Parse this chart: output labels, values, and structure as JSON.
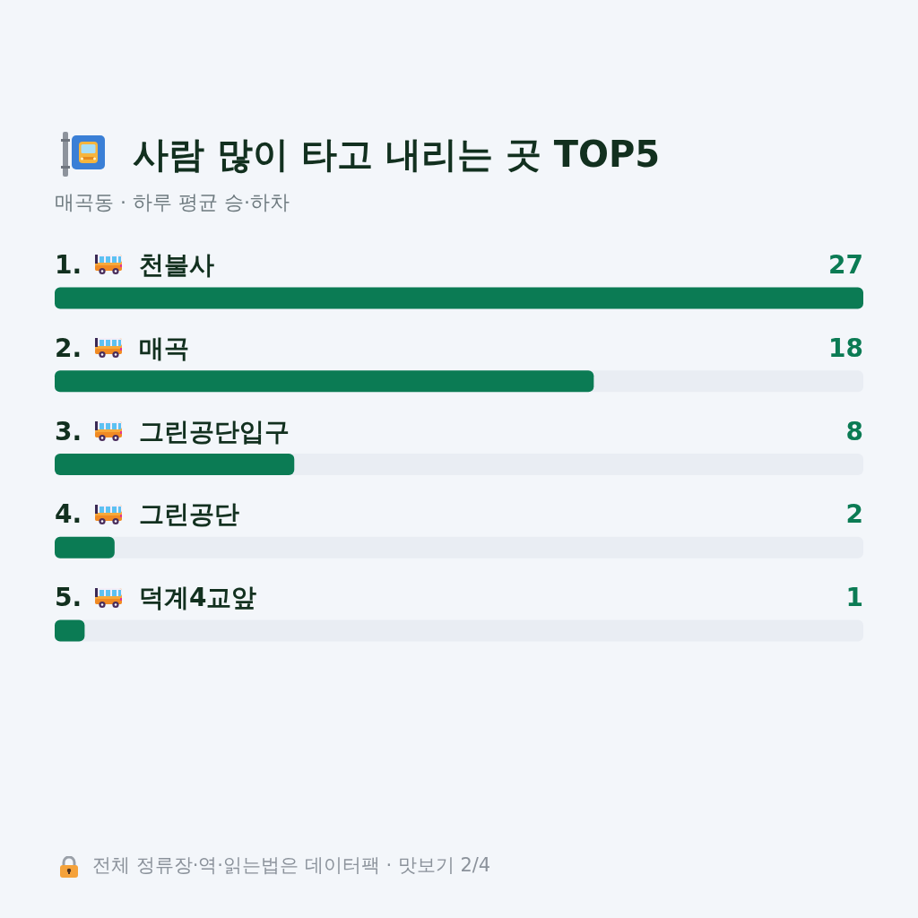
{
  "chart_data": {
    "type": "bar",
    "orientation": "horizontal",
    "title": "사람 많이 타고 내리는 곳 TOP5",
    "subtitle": "매곡동 · 하루 평균 승·하차",
    "categories": [
      "1. 천불사",
      "2. 매곡",
      "3. 그린공단입구",
      "4. 그린공단",
      "5. 덕계4교앞"
    ],
    "values": [
      27,
      18,
      8,
      2,
      1
    ],
    "color": "#0b7b54",
    "data_labels": true,
    "annotations": [
      "전체 정류장·역·읽는법은 데이터팩 · 맛보기 2/4"
    ]
  }
}
